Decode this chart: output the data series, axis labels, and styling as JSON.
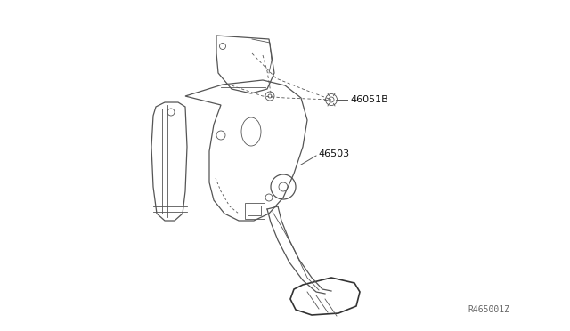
{
  "bg_color": "#ffffff",
  "line_color": "#555555",
  "dark_line": "#333333",
  "label_46051B": "46051B",
  "label_46503": "46503",
  "ref_code": "R465001Z",
  "label_fontsize": 8.0,
  "ref_fontsize": 7.0
}
